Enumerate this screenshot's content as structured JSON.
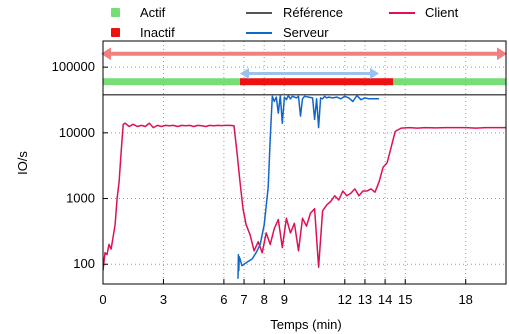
{
  "chart_data": {
    "type": "line",
    "title": "",
    "xlabel": "Temps (min)",
    "ylabel": "IO/s",
    "xlim": [
      0,
      20
    ],
    "ylim": [
      50,
      250000
    ],
    "y_scale": "log",
    "grid": true,
    "legend_position": "top",
    "x_ticks": [
      0,
      3,
      6,
      7,
      8,
      9,
      12,
      13,
      14,
      15,
      18
    ],
    "y_ticks": [
      100,
      1000,
      10000,
      100000
    ],
    "y_tick_labels": [
      "100",
      "1000",
      "10000",
      "100000"
    ],
    "legend": {
      "actif": "Actif",
      "inactif": "Inactif",
      "reference": "Référence",
      "serveur": "Serveur",
      "client": "Client"
    },
    "colors": {
      "actif": "#77dd77",
      "inactif": "#ee1111",
      "reference": "#555555",
      "serveur": "#1166cc",
      "client": "#dd1155",
      "outer_arrow": "#f08080",
      "inner_arrow": "#99c2f0"
    },
    "reference_value": 38000,
    "state_bar_value": 60000,
    "active_segments": [
      [
        0,
        6.8
      ],
      [
        14.4,
        20
      ]
    ],
    "inactive_segments": [
      [
        6.8,
        14.4
      ]
    ],
    "outer_range": [
      0,
      20
    ],
    "outer_range_value": 160000,
    "inner_range": [
      6.8,
      13.7
    ],
    "inner_range_value": 80000,
    "series": [
      {
        "name": "Client",
        "x": [
          0,
          0.1,
          0.2,
          0.3,
          0.4,
          0.5,
          0.6,
          0.7,
          0.8,
          0.9,
          1.0,
          1.1,
          1.3,
          1.5,
          1.7,
          1.9,
          2.1,
          2.3,
          2.5,
          2.7,
          2.9,
          3.1,
          3.3,
          3.5,
          3.7,
          3.9,
          4.1,
          4.3,
          4.5,
          4.7,
          4.9,
          5.1,
          5.3,
          5.5,
          5.7,
          5.9,
          6.1,
          6.3,
          6.5,
          6.65,
          6.8,
          6.95,
          7.1,
          7.3,
          7.5,
          7.7,
          7.9,
          8.1,
          8.3,
          8.5,
          8.7,
          8.9,
          9.1,
          9.3,
          9.5,
          9.7,
          9.9,
          10.1,
          10.3,
          10.5,
          10.7,
          10.9,
          11.1,
          11.3,
          11.5,
          11.7,
          11.9,
          12.1,
          12.3,
          12.5,
          12.7,
          12.9,
          13.1,
          13.3,
          13.5,
          13.7,
          13.9,
          14.1,
          14.3,
          14.5,
          14.8,
          15.2,
          15.6,
          16.0,
          16.5,
          17.0,
          17.5,
          18.0,
          18.5,
          19.0,
          19.5,
          20.0
        ],
        "values": [
          80,
          150,
          140,
          200,
          170,
          260,
          400,
          1000,
          1800,
          5000,
          13500,
          14000,
          12500,
          13500,
          12500,
          13000,
          12500,
          14000,
          12000,
          13000,
          12500,
          13000,
          12800,
          13000,
          12500,
          13000,
          12800,
          13000,
          12500,
          13000,
          12800,
          12500,
          13000,
          12800,
          13000,
          12900,
          13000,
          13000,
          12800,
          5000,
          1800,
          700,
          400,
          280,
          160,
          220,
          150,
          300,
          200,
          350,
          480,
          180,
          500,
          300,
          420,
          160,
          500,
          380,
          600,
          700,
          90,
          650,
          800,
          900,
          1100,
          950,
          1300,
          1100,
          1200,
          1400,
          1100,
          1300,
          1300,
          1400,
          1250,
          1800,
          3000,
          3500,
          6000,
          10500,
          11800,
          12000,
          11800,
          12000,
          11900,
          12000,
          12000,
          12000,
          11800,
          12000,
          12000,
          12000
        ]
      },
      {
        "name": "Serveur",
        "x": [
          6.7,
          6.72,
          6.74,
          6.76,
          6.8,
          6.9,
          7.0,
          7.2,
          7.4,
          7.6,
          7.8,
          8.0,
          8.2,
          8.3,
          8.4,
          8.5,
          8.6,
          8.7,
          8.8,
          8.9,
          9.0,
          9.1,
          9.2,
          9.3,
          9.4,
          9.5,
          9.6,
          9.7,
          9.8,
          9.9,
          10.0,
          10.2,
          10.4,
          10.5,
          10.6,
          10.7,
          10.8,
          10.9,
          11.0,
          11.1,
          11.2,
          11.4,
          11.6,
          11.8,
          12.0,
          12.2,
          12.4,
          12.6,
          12.8,
          13.0,
          13.2,
          13.4,
          13.7
        ],
        "values": [
          60,
          140,
          80,
          130,
          120,
          95,
          100,
          110,
          120,
          150,
          200,
          400,
          1500,
          8000,
          36000,
          30000,
          35000,
          20000,
          37000,
          14000,
          35000,
          32000,
          37000,
          33000,
          36000,
          35000,
          34000,
          36000,
          18000,
          33000,
          36000,
          35000,
          34000,
          16000,
          33000,
          12000,
          34000,
          33000,
          36000,
          34000,
          35000,
          34000,
          35000,
          33000,
          36000,
          34000,
          30000,
          37000,
          32000,
          34000,
          33000,
          33000,
          33000
        ]
      }
    ]
  }
}
